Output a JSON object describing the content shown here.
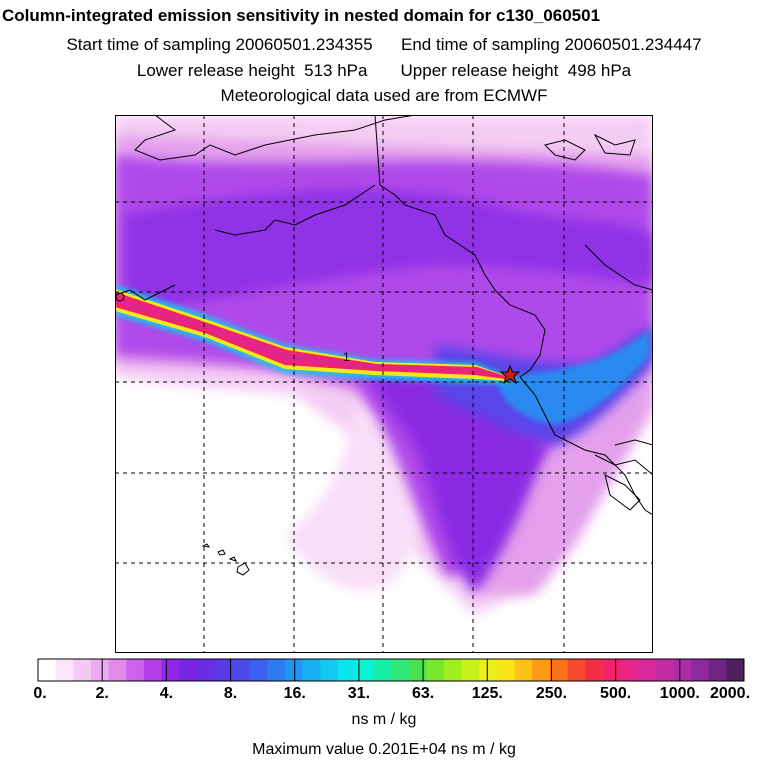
{
  "header": {
    "title": "Column-integrated emission sensitivity in nested domain for c130_060501",
    "start_label": "Start time of sampling 20060501.234355",
    "end_label": "End time of sampling 20060501.234447",
    "lower_label": "Lower release height  513 hPa",
    "upper_label": "Upper release height  498 hPa",
    "met_label": "Meteorological data used are from ECMWF"
  },
  "map": {
    "contour_label": "1",
    "release_marker": "star-icon"
  },
  "colorbar": {
    "tick_labels": [
      "0.",
      "2.",
      "4.",
      "8.",
      "16.",
      "31.",
      "63.",
      "125.",
      "250.",
      "500.",
      "1000.",
      "2000."
    ],
    "colors": [
      "#ffffff",
      "#fbe6fb",
      "#f4c9f4",
      "#ecaaf1",
      "#e08ae9",
      "#cf62ea",
      "#b43ee9",
      "#9226e6",
      "#7a24e4",
      "#6a2ce6",
      "#5b38e8",
      "#4e4aea",
      "#3d5fee",
      "#2c7cf0",
      "#1f97f2",
      "#17b1f2",
      "#10cbef",
      "#0ae5ec",
      "#0af3d6",
      "#18f0a8",
      "#2ee97a",
      "#4ae050",
      "#74e82c",
      "#a0ef1e",
      "#c8f01a",
      "#ecef1a",
      "#fbe31a",
      "#fcc216",
      "#fa9c14",
      "#f7741c",
      "#f54a2e",
      "#f22e46",
      "#f0246a",
      "#ea2488",
      "#d8289c",
      "#c42ca4",
      "#ac2ca8",
      "#8e2a9e",
      "#6e2682",
      "#50205e"
    ],
    "units": "ns m / kg",
    "max_value": "Maximum value  0.201E+04 ns m / kg"
  }
}
